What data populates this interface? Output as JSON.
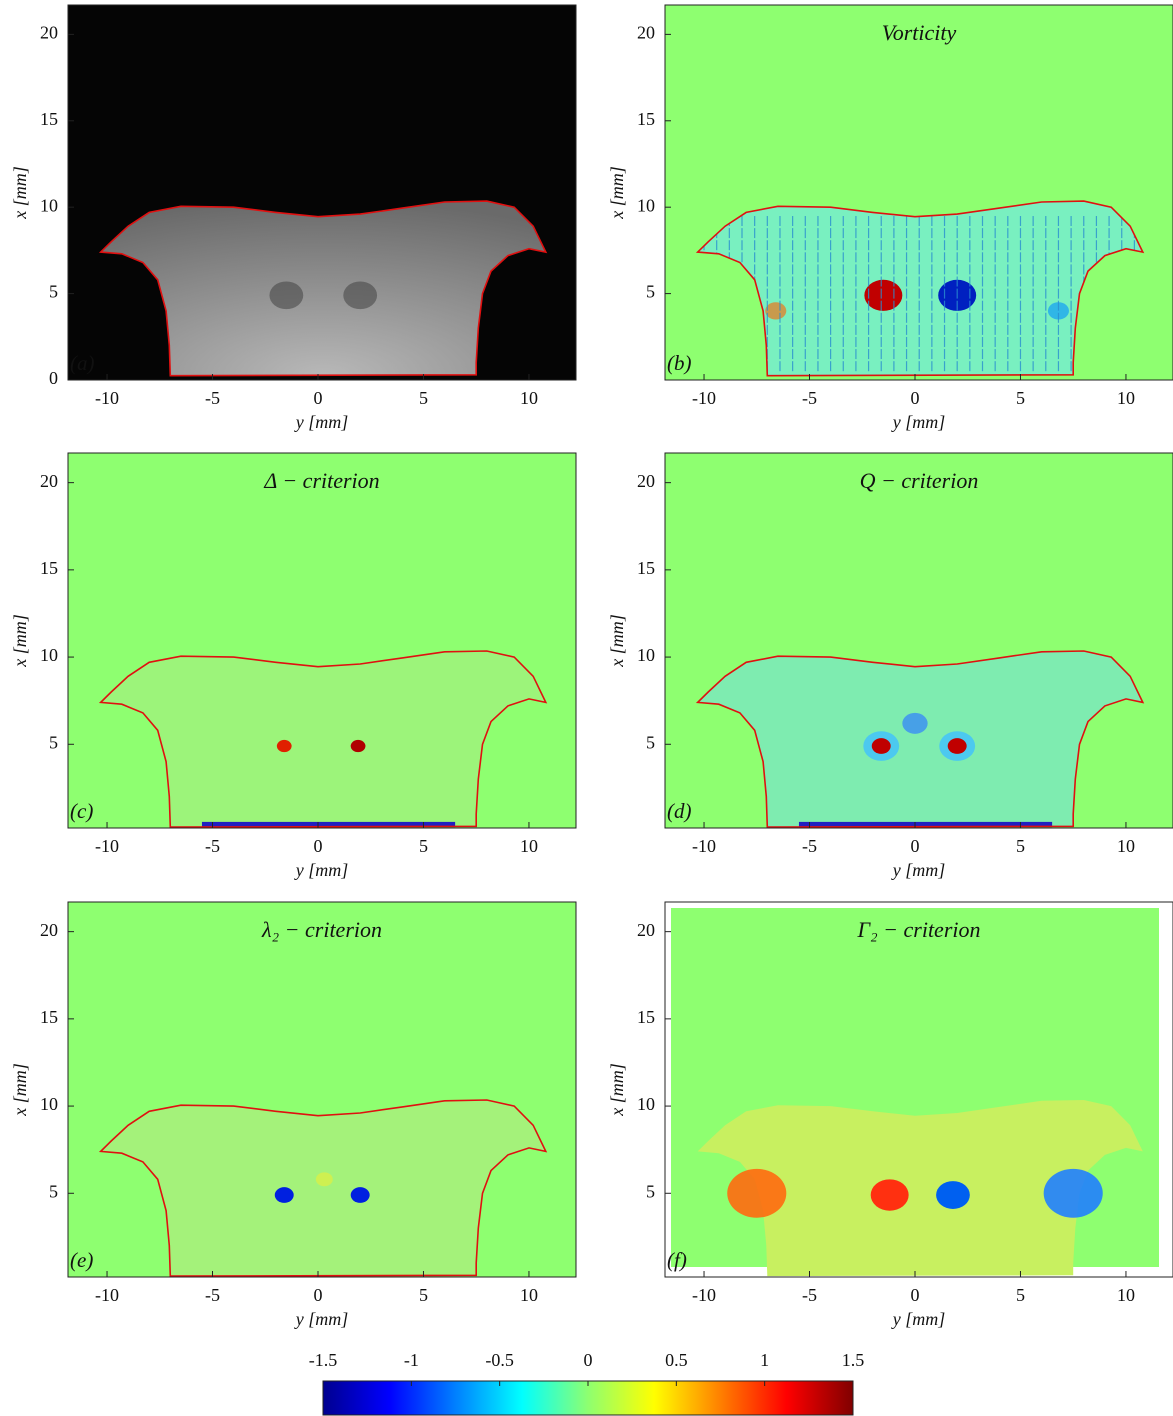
{
  "chart_data": [
    {
      "type": "image",
      "panel_label": "(a)",
      "xlabel": "y [mm]",
      "ylabel": "x [mm]",
      "xlim": [
        -11.85,
        12.23
      ],
      "ylim": [
        0,
        21.7
      ],
      "xticks": [
        -10,
        -5,
        0,
        5,
        10
      ],
      "yticks": [
        0,
        5,
        10,
        15,
        20
      ]
    },
    {
      "type": "image",
      "title": "Vorticity",
      "panel_label": "(b)",
      "xlabel": "y [mm]",
      "ylabel": "x [mm]",
      "xlim": [
        -11.85,
        12.23
      ],
      "ylim": [
        0,
        21.7
      ],
      "xticks": [
        -10,
        -5,
        0,
        5,
        10
      ],
      "yticks": [
        5,
        10,
        15,
        20
      ]
    },
    {
      "type": "image",
      "title": "Δ − criterion",
      "panel_label": "(c)",
      "xlabel": "y [mm]",
      "ylabel": "x [mm]",
      "xlim": [
        -11.85,
        12.23
      ],
      "ylim": [
        0.2,
        21.7
      ],
      "xticks": [
        -10,
        -5,
        0,
        5,
        10
      ],
      "yticks": [
        5,
        10,
        15,
        20
      ]
    },
    {
      "type": "image",
      "title": "Q − criterion",
      "panel_label": "(d)",
      "xlabel": "y [mm]",
      "ylabel": "x [mm]",
      "xlim": [
        -11.85,
        12.23
      ],
      "ylim": [
        0.2,
        21.7
      ],
      "xticks": [
        -10,
        -5,
        0,
        5,
        10
      ],
      "yticks": [
        5,
        10,
        15,
        20
      ]
    },
    {
      "type": "image",
      "title": "λ₂ − criterion",
      "panel_label": "(e)",
      "xlabel": "y [mm]",
      "ylabel": "x [mm]",
      "xlim": [
        -11.85,
        12.23
      ],
      "ylim": [
        0.2,
        21.7
      ],
      "xticks": [
        -10,
        -5,
        0,
        5,
        10
      ],
      "yticks": [
        5,
        10,
        15,
        20
      ]
    },
    {
      "type": "image",
      "title": "Γ₂ − criterion",
      "panel_label": "(f)",
      "xlabel": "y [mm]",
      "ylabel": "x [mm]",
      "xlim": [
        -11.85,
        12.23
      ],
      "ylim": [
        0.2,
        21.7
      ],
      "xticks": [
        -10,
        -5,
        0,
        5,
        10
      ],
      "yticks": [
        5,
        10,
        15,
        20
      ]
    },
    {
      "type": "colorbar",
      "xlim": [
        -1.5,
        1.5
      ],
      "xticks": [
        -1.5,
        -1,
        -0.5,
        0,
        0.5,
        1,
        1.5
      ]
    }
  ]
}
